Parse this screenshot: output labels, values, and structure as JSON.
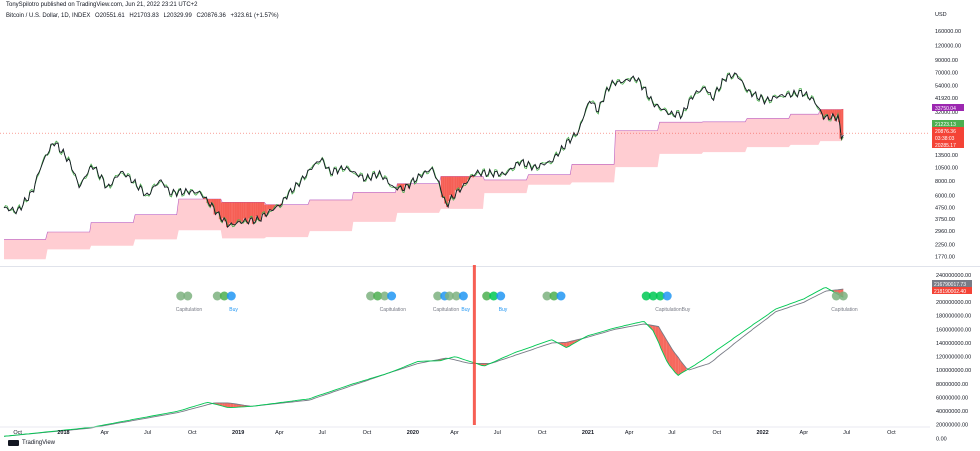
{
  "header": {
    "published": "TonySpilotro published on TradingView.com, Jun 21, 2022 23:21 UTC+2"
  },
  "symbol": {
    "name": "Bitcoin / U.S. Dollar, 1D, INDEX",
    "open": "O20551.61",
    "high": "H21703.83",
    "low": "L20329.99",
    "close": "C20876.36",
    "change": "+323.61 (+1.57%)"
  },
  "brand": {
    "name": "TradingView"
  },
  "colors": {
    "price_line": "#131722",
    "green_line": "#4caf50",
    "band_fill": "#ffcdd2",
    "band_edge": "#9c27b0",
    "cap_fill": "#f44336",
    "hash_green": "#00c853",
    "hash_gray": "#787b86",
    "cap_dot_gray": "#7cb27f",
    "buy_blue": "#2196f3",
    "vline": "#f44336",
    "tag_purple": "#9c27b0",
    "tag_green": "#4caf50",
    "tag_red": "#f44336",
    "tag_gray": "#787b86"
  },
  "chart_data": [
    {
      "type": "line",
      "title": "Bitcoin / U.S. Dollar, 1D, INDEX",
      "yscale": "log",
      "ylabel": "USD",
      "ylim": [
        1500,
        200000
      ],
      "y_ticks": [
        "160000.00",
        "120000.00",
        "90000.00",
        "70000.00",
        "54000.00",
        "41920.00",
        "32000.00",
        "13500.00",
        "10500.00",
        "8000.00",
        "6000.00",
        "4750.00",
        "3750.00",
        "2960.00",
        "2250.00",
        "1770.00"
      ],
      "y_tick_values": [
        160000,
        120000,
        90000,
        70000,
        54000,
        41920,
        32000,
        13500,
        10500,
        8000,
        6000,
        4750,
        3750,
        2960,
        2250,
        1770
      ],
      "series": [
        {
          "x": [
            "2017-09-01",
            "2017-10-01",
            "2017-11-01",
            "2017-12-15",
            "2018-01-15",
            "2018-02-06",
            "2018-03-05",
            "2018-04-06",
            "2018-05-05",
            "2018-06-28",
            "2018-07-25",
            "2018-08-15",
            "2018-09-15",
            "2018-10-15",
            "2018-11-25",
            "2018-12-15",
            "2019-01-15",
            "2019-02-15",
            "2019-04-02",
            "2019-05-15",
            "2019-06-26",
            "2019-07-15",
            "2019-08-15",
            "2019-09-25",
            "2019-10-26",
            "2019-11-25",
            "2019-12-18",
            "2020-01-15",
            "2020-02-13",
            "2020-03-13",
            "2020-04-15",
            "2020-05-15",
            "2020-06-15",
            "2020-07-15",
            "2020-08-15",
            "2020-09-15",
            "2020-10-21",
            "2020-11-15",
            "2020-12-17",
            "2021-01-08",
            "2021-01-25",
            "2021-02-21",
            "2021-03-13",
            "2021-04-14",
            "2021-05-19",
            "2021-06-22",
            "2021-07-20",
            "2021-08-15",
            "2021-09-07",
            "2021-09-21",
            "2021-10-20",
            "2021-11-10",
            "2021-12-04",
            "2022-01-10",
            "2022-02-10",
            "2022-03-28",
            "2022-04-20",
            "2022-05-12",
            "2022-06-10",
            "2022-06-18",
            "2022-06-21"
          ],
          "values": [
            4700,
            4400,
            6500,
            17500,
            12000,
            7000,
            11000,
            6900,
            9700,
            5900,
            8200,
            6300,
            6500,
            6400,
            4000,
            3300,
            3600,
            3700,
            5000,
            8000,
            12500,
            9500,
            10500,
            8400,
            9300,
            7000,
            6900,
            8700,
            10300,
            4900,
            7000,
            9500,
            9400,
            9200,
            11800,
            10500,
            12000,
            16000,
            22000,
            40500,
            32500,
            56000,
            58000,
            63000,
            38000,
            31000,
            30000,
            46000,
            52000,
            41000,
            64000,
            67500,
            48000,
            40000,
            44000,
            47000,
            40500,
            28500,
            29000,
            19000,
            20876
          ]
        },
        {
          "x": [
            "2017-09-01",
            "2017-12-01",
            "2018-03-01",
            "2018-06-01",
            "2018-09-01",
            "2018-12-01",
            "2019-03-01",
            "2019-06-01",
            "2019-09-01",
            "2019-12-01",
            "2020-03-01",
            "2020-06-01",
            "2020-09-01",
            "2020-12-01",
            "2021-03-01",
            "2021-06-01",
            "2021-09-01",
            "2021-12-01",
            "2022-03-01",
            "2022-05-01",
            "2022-06-21"
          ],
          "band_lower": [
            1680,
            2050,
            2200,
            2500,
            3000,
            2550,
            2620,
            2950,
            3550,
            4250,
            4600,
            6300,
            7450,
            7800,
            10600,
            13800,
            14300,
            15800,
            16500,
            17800,
            18500
          ],
          "band_upper": [
            2500,
            2900,
            3500,
            4100,
            5600,
            5250,
            5000,
            5500,
            6400,
            7600,
            8800,
            8200,
            9100,
            11200,
            22000,
            26000,
            26200,
            28000,
            30500,
            33500,
            33700
          ]
        }
      ],
      "price_tags": [
        {
          "value": "33750.04",
          "color": "#9c27b0"
        },
        {
          "value": "21223.13",
          "color": "#4caf50"
        },
        {
          "value": "20876.36",
          "color": "#f44336"
        },
        {
          "value": "03:38:03",
          "color": "#f44336"
        },
        {
          "value": "20285.17",
          "color": "#f44336"
        }
      ]
    },
    {
      "type": "line",
      "title": "Hash Ribbons",
      "ylim": [
        -20000000,
        250000000
      ],
      "y_ticks": [
        "240000000.00",
        "200000000.00",
        "180000000.00",
        "160000000.00",
        "140000000.00",
        "120000000.00",
        "100000000.00",
        "80000000.00",
        "60000000.00",
        "40000000.00",
        "20000000.00",
        "0.00"
      ],
      "y_tick_values": [
        240000000,
        200000000,
        180000000,
        160000000,
        140000000,
        120000000,
        100000000,
        80000000,
        60000000,
        40000000,
        20000000,
        0
      ],
      "series": [
        {
          "name": "fast",
          "x": [
            "2017-09-01",
            "2018-03-01",
            "2018-09-01",
            "2018-11-01",
            "2018-12-15",
            "2019-02-01",
            "2019-06-01",
            "2019-09-01",
            "2019-11-15",
            "2020-01-15",
            "2020-03-01",
            "2020-04-01",
            "2020-06-01",
            "2020-08-01",
            "2020-10-20",
            "2020-11-20",
            "2021-01-01",
            "2021-03-01",
            "2021-05-01",
            "2021-05-20",
            "2021-06-20",
            "2021-07-10",
            "2021-09-01",
            "2021-12-01",
            "2022-02-01",
            "2022-04-01",
            "2022-05-15",
            "2022-06-21"
          ],
          "values": [
            3000000,
            16000000,
            40000000,
            53000000,
            45000000,
            47000000,
            58000000,
            80000000,
            96000000,
            113000000,
            114000000,
            120000000,
            106000000,
            125000000,
            145000000,
            133000000,
            150000000,
            162000000,
            172000000,
            158000000,
            110000000,
            92000000,
            115000000,
            160000000,
            190000000,
            205000000,
            222000000,
            207000000
          ]
        },
        {
          "name": "slow",
          "x": [
            "2017-09-01",
            "2018-03-01",
            "2018-09-01",
            "2018-11-15",
            "2018-12-15",
            "2019-02-01",
            "2019-06-01",
            "2019-09-01",
            "2019-11-15",
            "2020-01-15",
            "2020-03-15",
            "2020-05-01",
            "2020-06-15",
            "2020-08-01",
            "2020-10-20",
            "2020-11-20",
            "2021-01-01",
            "2021-03-01",
            "2021-05-01",
            "2021-06-01",
            "2021-07-01",
            "2021-08-01",
            "2021-09-15",
            "2021-12-01",
            "2022-02-01",
            "2022-04-01",
            "2022-05-15",
            "2022-06-21"
          ],
          "values": [
            3000000,
            15000000,
            38000000,
            52000000,
            52000000,
            47000000,
            56000000,
            78000000,
            96000000,
            110000000,
            118000000,
            110000000,
            110000000,
            121000000,
            140000000,
            141000000,
            148000000,
            160000000,
            168000000,
            164000000,
            128000000,
            100000000,
            110000000,
            153000000,
            186000000,
            200000000,
            216000000,
            219000000
          ]
        }
      ],
      "price_tags": [
        {
          "value": "216790017.73",
          "color": "#787b86"
        },
        {
          "value": "218190002.40",
          "color": "#f44336"
        }
      ],
      "annotations": [
        {
          "x": "2018-09-20",
          "label": "Capitulation",
          "dots": [
            "#7cb27f",
            "#7cb27f"
          ]
        },
        {
          "x": "2018-12-20",
          "label": "Buy",
          "dots": [
            "#7cb27f",
            "#4caf50",
            "#2196f3"
          ]
        },
        {
          "x": "2019-11-20",
          "label": "Capitulation",
          "dots": [
            "#7cb27f",
            "#4caf50",
            "#7cb27f",
            "#2196f3"
          ]
        },
        {
          "x": "2020-03-10",
          "label": "Capitulation",
          "dots": [
            "#7cb27f",
            "#2196f3"
          ]
        },
        {
          "x": "2020-04-18",
          "label": "Buy",
          "dots": [
            "#7cb27f",
            "#7cb27f",
            "#2196f3"
          ]
        },
        {
          "x": "2020-07-05",
          "label": "Buy",
          "dots": [
            "#4caf50",
            "#00c853",
            "#2196f3"
          ]
        },
        {
          "x": "2020-11-08",
          "label": "",
          "dots": [
            "#7cb27f",
            "#4caf50",
            "#2196f3"
          ]
        },
        {
          "x": "2021-06-18",
          "label": "CapitulationBuy",
          "dots": [
            "#00c853",
            "#00c853",
            "#00c853",
            "#2196f3"
          ]
        },
        {
          "x": "2022-06-21",
          "label": "Capitulation",
          "dots": [
            "#7cb27f",
            "#7cb27f"
          ]
        }
      ],
      "event_line_x": "2020-05-11"
    }
  ],
  "x_axis": {
    "ticks": [
      {
        "label": "Oct",
        "date": "2017-10-01",
        "bold": false
      },
      {
        "label": "2018",
        "date": "2018-01-01",
        "bold": true
      },
      {
        "label": "Apr",
        "date": "2018-04-01",
        "bold": false
      },
      {
        "label": "Jul",
        "date": "2018-07-01",
        "bold": false
      },
      {
        "label": "Oct",
        "date": "2018-10-01",
        "bold": false
      },
      {
        "label": "2019",
        "date": "2019-01-01",
        "bold": true
      },
      {
        "label": "Apr",
        "date": "2019-04-01",
        "bold": false
      },
      {
        "label": "Jul",
        "date": "2019-07-01",
        "bold": false
      },
      {
        "label": "Oct",
        "date": "2019-10-01",
        "bold": false
      },
      {
        "label": "2020",
        "date": "2020-01-01",
        "bold": true
      },
      {
        "label": "Apr",
        "date": "2020-04-01",
        "bold": false
      },
      {
        "label": "Jul",
        "date": "2020-07-01",
        "bold": false
      },
      {
        "label": "Oct",
        "date": "2020-10-01",
        "bold": false
      },
      {
        "label": "2021",
        "date": "2021-01-01",
        "bold": true
      },
      {
        "label": "Apr",
        "date": "2021-04-01",
        "bold": false
      },
      {
        "label": "Jul",
        "date": "2021-07-01",
        "bold": false
      },
      {
        "label": "Oct",
        "date": "2021-10-01",
        "bold": false
      },
      {
        "label": "2022",
        "date": "2022-01-01",
        "bold": true
      },
      {
        "label": "Apr",
        "date": "2022-04-01",
        "bold": false
      },
      {
        "label": "Jul",
        "date": "2022-07-01",
        "bold": false
      },
      {
        "label": "Oct",
        "date": "2022-10-01",
        "bold": false
      }
    ]
  }
}
